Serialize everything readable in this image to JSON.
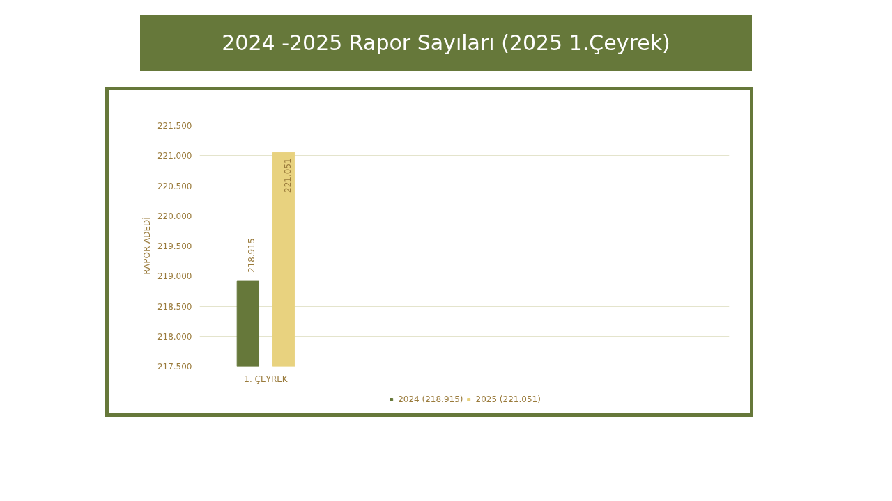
{
  "chart_data": {
    "type": "bar",
    "title": "2024 -2025 Rapor Sayıları (2025 1.Çeyrek)",
    "ylabel": "RAPOR ADEDİ",
    "categories": [
      "1. ÇEYREK"
    ],
    "series": [
      {
        "name": "2024 (218.915)",
        "color": "#66783a",
        "values": [
          218915
        ],
        "value_labels": [
          "218.915"
        ]
      },
      {
        "name": "2025 (221.051)",
        "color": "#e8d27f",
        "values": [
          221051
        ],
        "value_labels": [
          "221.051"
        ]
      }
    ],
    "ylim": [
      217500,
      221500
    ],
    "yticks": [
      {
        "value": 217500,
        "label": "217.500"
      },
      {
        "value": 218000,
        "label": "218.000"
      },
      {
        "value": 218500,
        "label": "218.500"
      },
      {
        "value": 219000,
        "label": "219.000"
      },
      {
        "value": 219500,
        "label": "219.500"
      },
      {
        "value": 220000,
        "label": "220.000"
      },
      {
        "value": 220500,
        "label": "220.500"
      },
      {
        "value": 221000,
        "label": "221.000"
      },
      {
        "value": 221500,
        "label": "221.500"
      }
    ],
    "grid": "y",
    "legend": "bottom"
  }
}
